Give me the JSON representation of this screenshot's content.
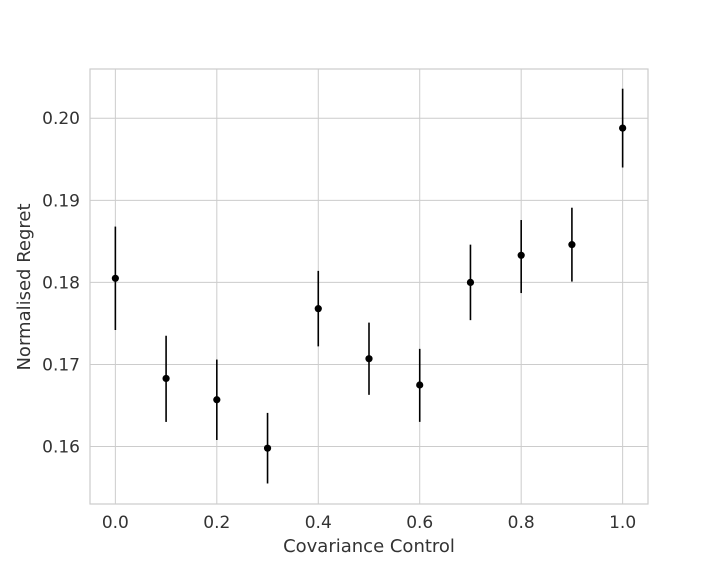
{
  "chart_data": {
    "type": "scatter",
    "xlabel": "Covariance Control",
    "ylabel": "Normalised Regret",
    "xlim": [
      -0.05,
      1.05
    ],
    "ylim": [
      0.153,
      0.206
    ],
    "x_ticks": [
      "0.0",
      "0.2",
      "0.4",
      "0.6",
      "0.8",
      "1.0"
    ],
    "y_ticks": [
      "0.16",
      "0.17",
      "0.18",
      "0.19",
      "0.20"
    ],
    "grid": true,
    "series": [
      {
        "x": [
          0.0,
          0.1,
          0.2,
          0.3,
          0.4,
          0.5,
          0.6,
          0.7,
          0.8,
          0.9,
          1.0
        ],
        "y": [
          0.1805,
          0.1683,
          0.1657,
          0.1598,
          0.1768,
          0.1707,
          0.1675,
          0.18,
          0.1833,
          0.1846,
          0.1988
        ],
        "err_low": [
          0.1742,
          0.163,
          0.1608,
          0.1555,
          0.1722,
          0.1663,
          0.163,
          0.1754,
          0.1787,
          0.1801,
          0.194
        ],
        "err_high": [
          0.1868,
          0.1735,
          0.1706,
          0.1641,
          0.1814,
          0.1751,
          0.1719,
          0.1846,
          0.1876,
          0.1891,
          0.2036
        ],
        "color": "#000000"
      }
    ]
  }
}
